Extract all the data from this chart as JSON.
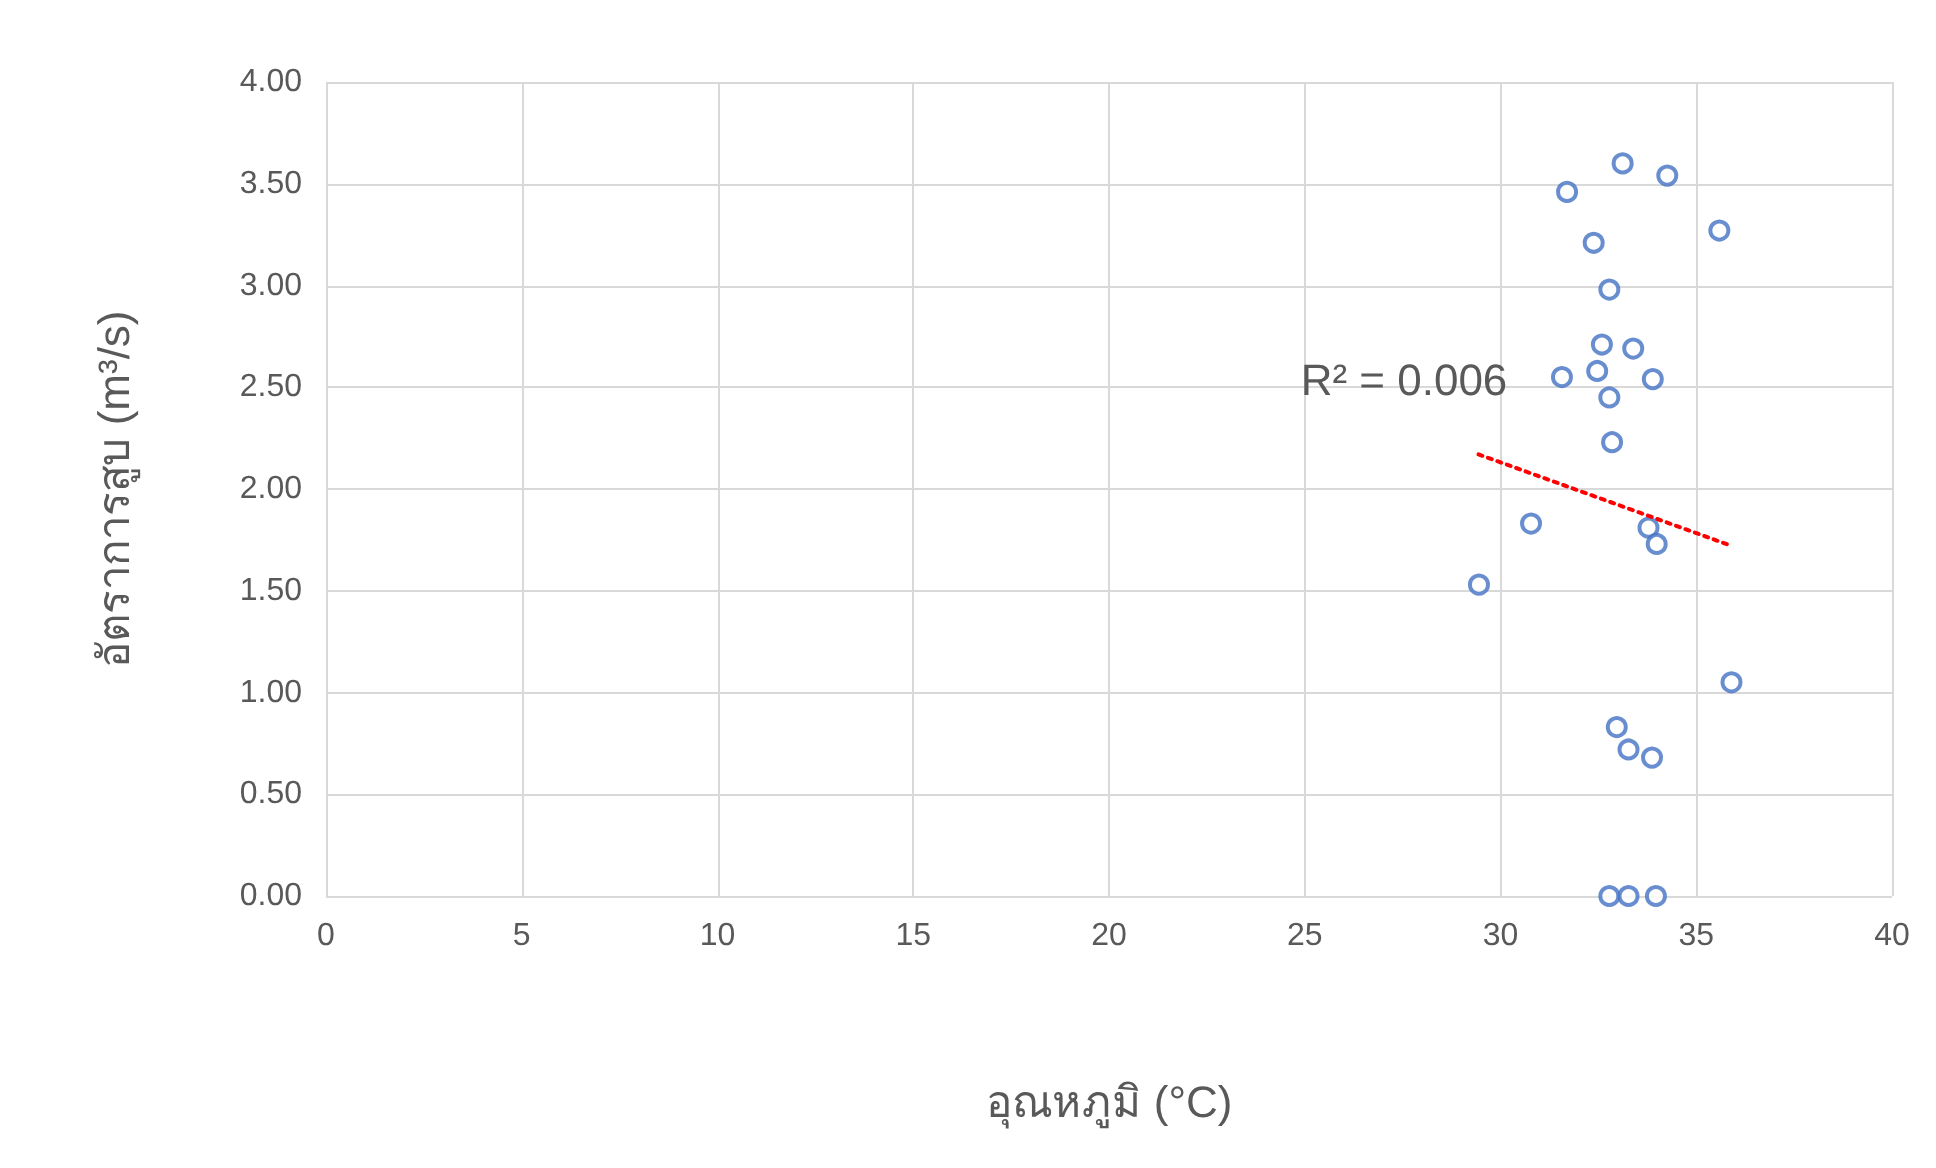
{
  "chart_data": {
    "type": "scatter",
    "xlabel": "อุณหภูมิ (°C)",
    "ylabel": "อัตราการสูบ (m³/s)",
    "xlim": [
      0,
      40
    ],
    "xticks": [
      0,
      5,
      10,
      15,
      20,
      25,
      30,
      35,
      40
    ],
    "ylim": [
      0,
      4
    ],
    "yticks": [
      {
        "value": 0,
        "label": "0.00"
      },
      {
        "value": 0.5,
        "label": "0.50"
      },
      {
        "value": 1,
        "label": "1.00"
      },
      {
        "value": 1.5,
        "label": "1.50"
      },
      {
        "value": 2,
        "label": "2.00"
      },
      {
        "value": 2.5,
        "label": "2.50"
      },
      {
        "value": 3,
        "label": "3.00"
      },
      {
        "value": 3.5,
        "label": "3.50"
      },
      {
        "value": 4,
        "label": "4.00"
      }
    ],
    "grid": true,
    "series": [
      {
        "color": "#4472c4",
        "marker": "circle",
        "x": [
          33.12,
          34.26,
          31.7,
          35.59,
          32.38,
          32.78,
          32.59,
          33.39,
          31.57,
          32.47,
          33.89,
          32.78,
          32.85,
          30.78,
          33.78,
          33.99,
          29.45,
          35.9,
          32.97,
          33.27,
          33.87,
          32.78,
          33.27,
          33.97
        ],
        "values": [
          3.6,
          3.54,
          3.46,
          3.27,
          3.21,
          2.98,
          2.71,
          2.69,
          2.55,
          2.58,
          2.54,
          2.45,
          2.23,
          1.83,
          1.81,
          1.73,
          1.53,
          1.05,
          0.83,
          0.72,
          0.68,
          0,
          0,
          0
        ]
      },
      {
        "type": "line",
        "color": "#ff0000",
        "marker": "none",
        "line_style": "dotted",
        "x": [
          29.44,
          35.91
        ],
        "values": [
          2.17,
          1.72
        ]
      }
    ],
    "annotations": [
      "R² = 0.006"
    ]
  }
}
